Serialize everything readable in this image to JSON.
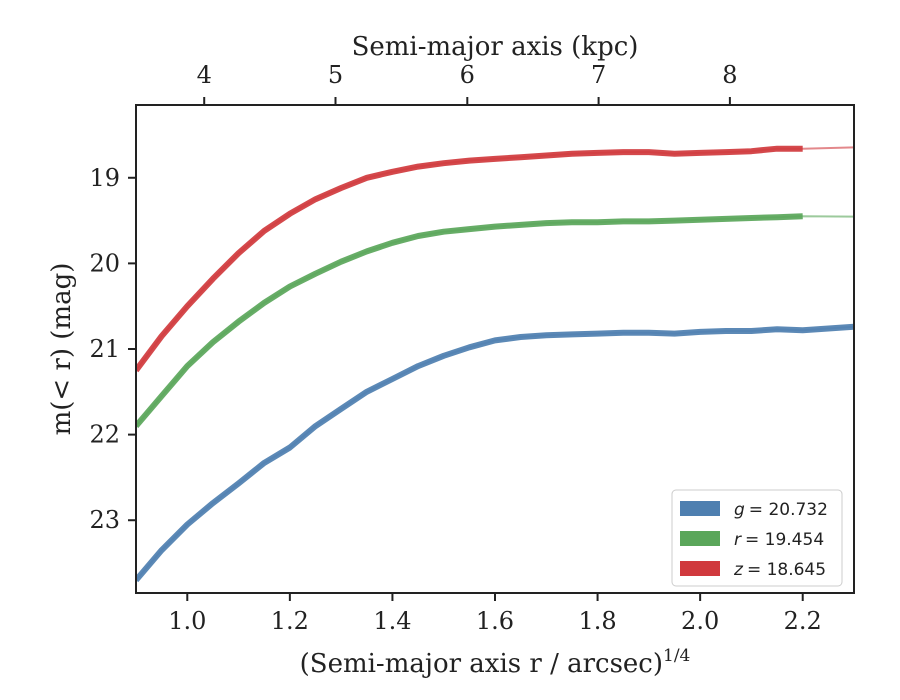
{
  "chart_data": {
    "type": "line",
    "xlabel_bottom": "(Semi-major axis r / arcsec)",
    "xlabel_bottom_sup": "1/4",
    "xlabel_top": "Semi-major axis (kpc)",
    "ylabel": "m(< r) (mag)",
    "xlim": [
      0.9,
      2.3
    ],
    "ylim": [
      23.85,
      18.15
    ],
    "y_inverted": true,
    "x_ticks": [
      "1.0",
      "1.2",
      "1.4",
      "1.6",
      "1.8",
      "2.0",
      "2.2"
    ],
    "y_ticks": [
      "19",
      "20",
      "21",
      "22",
      "23"
    ],
    "top_ticks": [
      "4",
      "5",
      "6",
      "7",
      "8"
    ],
    "top_tick_positions": [
      1.033,
      1.289,
      1.546,
      1.802,
      2.058
    ],
    "legend_position": "lower-right",
    "series": [
      {
        "name": "g = 20.732",
        "color": "#4e7fb0",
        "x": [
          0.9,
          0.95,
          1.0,
          1.05,
          1.1,
          1.15,
          1.2,
          1.25,
          1.3,
          1.35,
          1.4,
          1.45,
          1.5,
          1.55,
          1.6,
          1.65,
          1.7,
          1.75,
          1.8,
          1.85,
          1.9,
          1.95,
          2.0,
          2.05,
          2.1,
          2.15,
          2.2,
          2.25,
          2.3
        ],
        "y": [
          23.7,
          23.35,
          23.05,
          22.8,
          22.57,
          22.33,
          22.15,
          21.9,
          21.7,
          21.5,
          21.35,
          21.2,
          21.08,
          20.98,
          20.9,
          20.86,
          20.84,
          20.83,
          20.82,
          20.81,
          20.81,
          20.82,
          20.8,
          20.79,
          20.79,
          20.77,
          20.78,
          20.76,
          20.74
        ],
        "fit_asymptote": 20.732
      },
      {
        "name": "r = 19.454",
        "color": "#5aa65a",
        "x": [
          0.9,
          0.95,
          1.0,
          1.05,
          1.1,
          1.15,
          1.2,
          1.25,
          1.3,
          1.35,
          1.4,
          1.45,
          1.5,
          1.55,
          1.6,
          1.65,
          1.7,
          1.75,
          1.8,
          1.85,
          1.9,
          1.95,
          2.0,
          2.05,
          2.1,
          2.15,
          2.2
        ],
        "y": [
          21.9,
          21.55,
          21.2,
          20.92,
          20.68,
          20.46,
          20.27,
          20.12,
          19.98,
          19.86,
          19.76,
          19.68,
          19.63,
          19.6,
          19.57,
          19.55,
          19.53,
          19.52,
          19.52,
          19.51,
          19.51,
          19.5,
          19.49,
          19.48,
          19.47,
          19.46,
          19.45
        ],
        "fit_asymptote": 19.454
      },
      {
        "name": "z = 18.645",
        "color": "#d0393d",
        "x": [
          0.9,
          0.95,
          1.0,
          1.05,
          1.1,
          1.15,
          1.2,
          1.25,
          1.3,
          1.35,
          1.4,
          1.45,
          1.5,
          1.55,
          1.6,
          1.65,
          1.7,
          1.75,
          1.8,
          1.85,
          1.9,
          1.95,
          2.0,
          2.05,
          2.1,
          2.15,
          2.2
        ],
        "y": [
          21.25,
          20.85,
          20.5,
          20.18,
          19.88,
          19.62,
          19.42,
          19.25,
          19.12,
          19.0,
          18.93,
          18.87,
          18.83,
          18.8,
          18.78,
          18.76,
          18.74,
          18.72,
          18.71,
          18.7,
          18.7,
          18.72,
          18.71,
          18.7,
          18.69,
          18.66,
          18.66
        ],
        "fit_asymptote": 18.645
      }
    ]
  },
  "legend": [
    {
      "var": "g",
      "value": "= 20.732",
      "color": "#4e7fb0"
    },
    {
      "var": "r",
      "value": "= 19.454",
      "color": "#5aa65a"
    },
    {
      "var": "z",
      "value": "= 18.645",
      "color": "#d0393d"
    }
  ]
}
